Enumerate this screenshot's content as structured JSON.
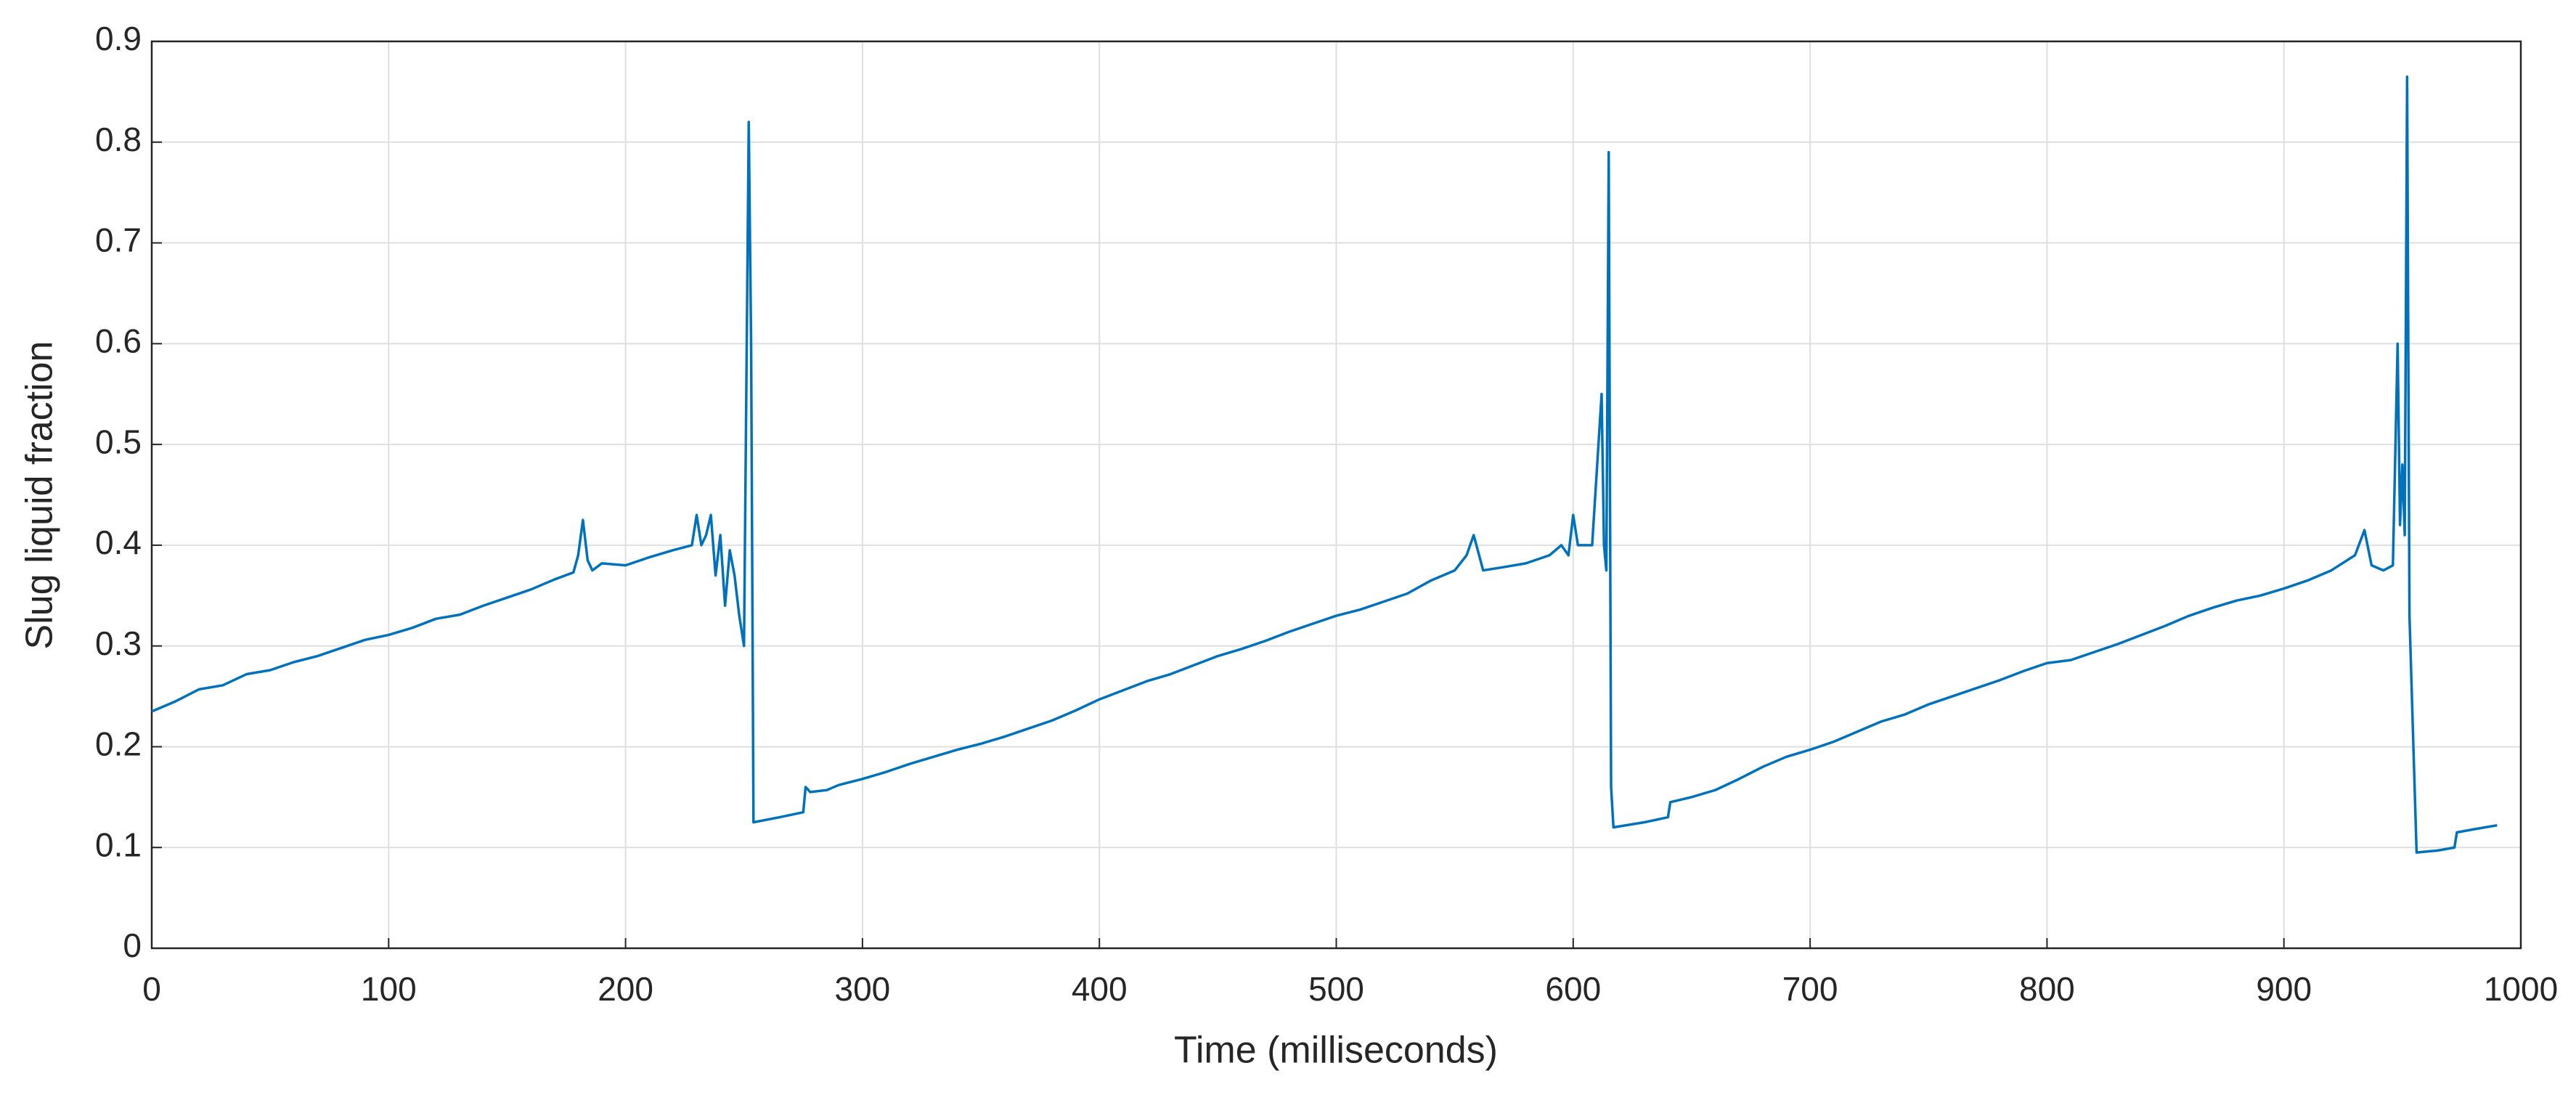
{
  "chart_data": {
    "type": "line",
    "xlabel": "Time (milliseconds)",
    "ylabel": "Slug liquid fraction",
    "xlim": [
      0,
      1000
    ],
    "xticks": [
      0,
      100,
      200,
      300,
      400,
      500,
      600,
      700,
      800,
      900,
      1000
    ],
    "ylim": [
      0,
      0.9
    ],
    "yticks": [
      0,
      0.1,
      0.2,
      0.3,
      0.4,
      0.5,
      0.6,
      0.7,
      0.8,
      0.9
    ],
    "grid": true,
    "x": [
      0,
      10,
      20,
      30,
      40,
      50,
      60,
      70,
      80,
      90,
      100,
      110,
      120,
      130,
      140,
      150,
      160,
      170,
      178,
      180,
      182,
      184,
      186,
      190,
      200,
      210,
      220,
      228,
      230,
      232,
      234,
      236,
      238,
      240,
      242,
      244,
      246,
      248,
      250,
      252,
      253,
      254,
      265,
      275,
      276,
      278,
      285,
      290,
      300,
      310,
      320,
      330,
      340,
      350,
      360,
      370,
      380,
      390,
      400,
      410,
      420,
      430,
      440,
      450,
      460,
      470,
      480,
      490,
      500,
      510,
      520,
      530,
      540,
      550,
      555,
      558,
      562,
      570,
      580,
      590,
      595,
      598,
      600,
      602,
      608,
      612,
      613,
      614,
      615,
      616,
      617,
      630,
      640,
      641,
      650,
      660,
      670,
      680,
      690,
      700,
      710,
      720,
      730,
      740,
      750,
      760,
      770,
      780,
      790,
      800,
      810,
      820,
      830,
      840,
      850,
      860,
      870,
      880,
      890,
      900,
      910,
      920,
      930,
      934,
      937,
      942,
      946,
      948,
      949,
      950,
      951,
      952,
      953,
      956,
      965,
      972,
      973,
      980,
      990
    ],
    "series": [
      {
        "color": "#0072bd",
        "values": [
          0.235,
          0.245,
          0.257,
          0.261,
          0.272,
          0.276,
          0.284,
          0.29,
          0.298,
          0.306,
          0.311,
          0.318,
          0.327,
          0.331,
          0.34,
          0.348,
          0.356,
          0.366,
          0.373,
          0.39,
          0.425,
          0.385,
          0.375,
          0.382,
          0.38,
          0.388,
          0.395,
          0.4,
          0.43,
          0.4,
          0.41,
          0.43,
          0.37,
          0.41,
          0.34,
          0.395,
          0.37,
          0.33,
          0.3,
          0.82,
          0.6,
          0.125,
          0.13,
          0.135,
          0.16,
          0.155,
          0.157,
          0.162,
          0.168,
          0.175,
          0.183,
          0.19,
          0.197,
          0.203,
          0.21,
          0.218,
          0.226,
          0.236,
          0.247,
          0.256,
          0.265,
          0.272,
          0.281,
          0.29,
          0.297,
          0.305,
          0.314,
          0.322,
          0.33,
          0.336,
          0.344,
          0.352,
          0.365,
          0.375,
          0.39,
          0.41,
          0.375,
          0.378,
          0.382,
          0.39,
          0.4,
          0.39,
          0.43,
          0.4,
          0.4,
          0.55,
          0.4,
          0.375,
          0.79,
          0.16,
          0.12,
          0.125,
          0.13,
          0.145,
          0.15,
          0.157,
          0.168,
          0.18,
          0.19,
          0.197,
          0.205,
          0.215,
          0.225,
          0.232,
          0.242,
          0.25,
          0.258,
          0.266,
          0.275,
          0.283,
          0.286,
          0.294,
          0.302,
          0.311,
          0.32,
          0.33,
          0.338,
          0.345,
          0.35,
          0.357,
          0.365,
          0.375,
          0.39,
          0.415,
          0.38,
          0.375,
          0.38,
          0.6,
          0.42,
          0.48,
          0.41,
          0.865,
          0.33,
          0.095,
          0.097,
          0.1,
          0.115,
          0.118,
          0.122
        ]
      }
    ]
  }
}
